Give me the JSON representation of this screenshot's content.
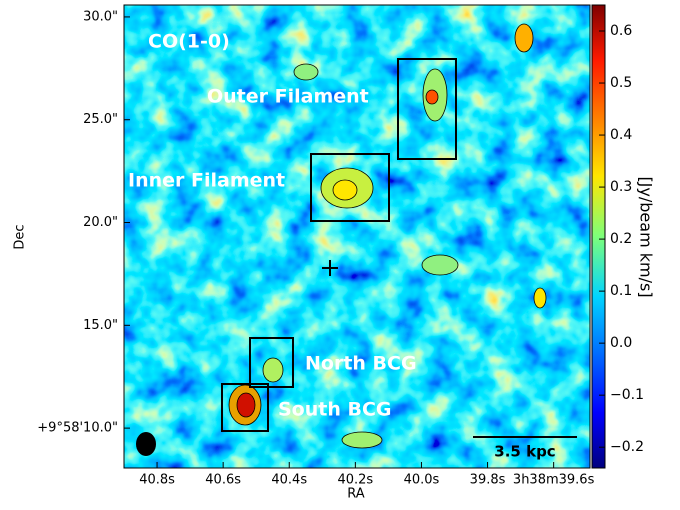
{
  "chart_data": {
    "type": "image",
    "title": "CO(1-0)",
    "xlabel": "RA",
    "ylabel": "Dec",
    "colorbar_label": "[Jy/beam km/s]",
    "annotations": [
      "Outer Filament",
      "Inner Filament",
      "North BCG",
      "South BCG"
    ],
    "scale_bar_label": "3.5 kpc",
    "xlim": [
      40.9,
      39.49
    ],
    "xticks": [
      {
        "value": 40.8,
        "label": "40.8s"
      },
      {
        "value": 40.6,
        "label": "40.6s"
      },
      {
        "value": 40.4,
        "label": "40.4s"
      },
      {
        "value": 40.2,
        "label": "40.2s"
      },
      {
        "value": 40.0,
        "label": "40.0s"
      },
      {
        "value": 39.8,
        "label": "39.8s"
      },
      {
        "value": 39.6,
        "label": "3h38m39.6s"
      }
    ],
    "ylim": [
      8.06,
      30.58
    ],
    "yticks": [
      {
        "value": 30,
        "label": "30.0\""
      },
      {
        "value": 25,
        "label": "25.0\""
      },
      {
        "value": 20,
        "label": "20.0\""
      },
      {
        "value": 15,
        "label": "15.0\""
      },
      {
        "value": 10,
        "label": "+9°58'10.0\""
      }
    ],
    "clim": [
      -0.24,
      0.65
    ],
    "cticks": [
      0.6,
      0.5,
      0.4,
      0.3,
      0.2,
      0.1,
      {
        "value": 0,
        "label": "0.0"
      },
      {
        "value": -0.1,
        "label": "−0.1"
      },
      {
        "value": -0.2,
        "label": "−0.2"
      }
    ],
    "colormap": "jet"
  }
}
